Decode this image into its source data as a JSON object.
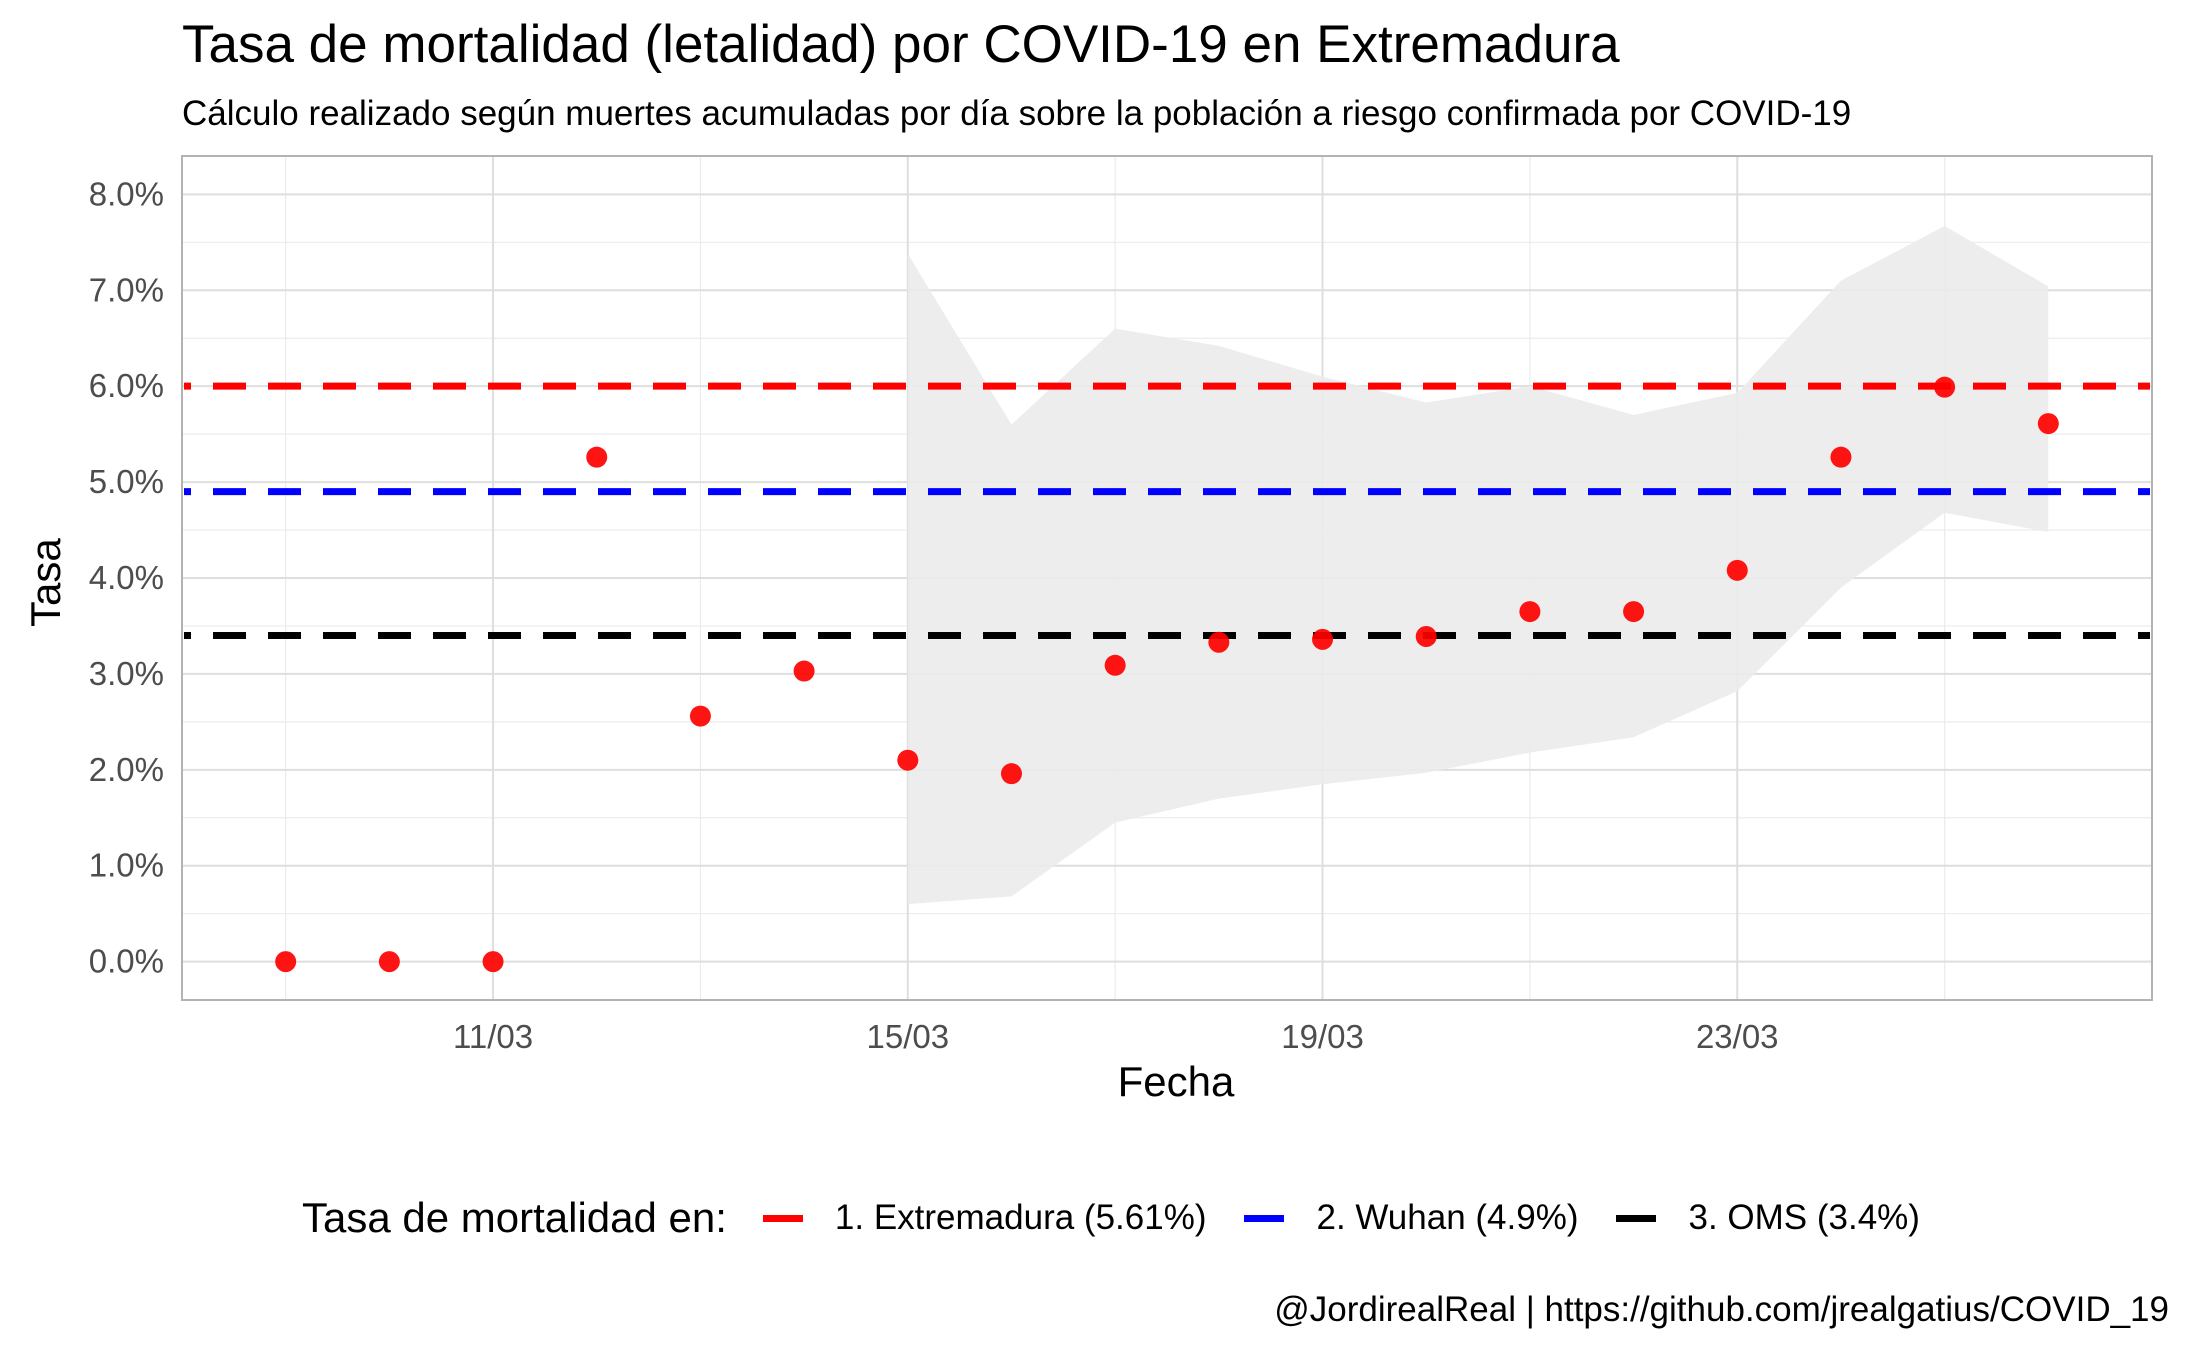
{
  "chart_data": {
    "type": "scatter",
    "title": "Tasa de mortalidad (letalidad) por COVID-19 en Extremadura",
    "subtitle": "Cálculo realizado según muertes acumuladas por día sobre la población a riesgo confirmada por COVID-19",
    "xlabel": "Fecha",
    "ylabel": "Tasa",
    "caption": "@JordirealReal | https://github.com/jrealgatius/COVID_19",
    "x_ticks": [
      {
        "label": "11/03",
        "value": "2020-03-11"
      },
      {
        "label": "15/03",
        "value": "2020-03-15"
      },
      {
        "label": "19/03",
        "value": "2020-03-19"
      },
      {
        "label": "23/03",
        "value": "2020-03-23"
      }
    ],
    "xlim": [
      "2020-03-08",
      "2020-03-27"
    ],
    "y_ticks": [
      "0.0%",
      "1.0%",
      "2.0%",
      "3.0%",
      "4.0%",
      "5.0%",
      "6.0%",
      "7.0%",
      "8.0%"
    ],
    "ylim": [
      -0.004,
      0.084
    ],
    "grid": true,
    "points": {
      "color": "#ff0000",
      "x": [
        "2020-03-09",
        "2020-03-10",
        "2020-03-11",
        "2020-03-12",
        "2020-03-13",
        "2020-03-14",
        "2020-03-15",
        "2020-03-16",
        "2020-03-17",
        "2020-03-18",
        "2020-03-19",
        "2020-03-20",
        "2020-03-21",
        "2020-03-22",
        "2020-03-23",
        "2020-03-24",
        "2020-03-25",
        "2020-03-26"
      ],
      "y": [
        0.0,
        0.0,
        0.0,
        0.0526,
        0.0256,
        0.0303,
        0.021,
        0.0196,
        0.0309,
        0.0333,
        0.0336,
        0.0339,
        0.0365,
        0.0365,
        0.0408,
        0.0526,
        0.0599,
        0.0561
      ]
    },
    "ribbon": {
      "color": "#ebebeb",
      "x": [
        "2020-03-15",
        "2020-03-16",
        "2020-03-17",
        "2020-03-18",
        "2020-03-19",
        "2020-03-20",
        "2020-03-21",
        "2020-03-22",
        "2020-03-23",
        "2020-03-24",
        "2020-03-25",
        "2020-03-26"
      ],
      "lower": [
        0.006,
        0.0068,
        0.0145,
        0.017,
        0.0185,
        0.0197,
        0.0218,
        0.0234,
        0.0282,
        0.039,
        0.0468,
        0.0448
      ],
      "upper": [
        0.0738,
        0.056,
        0.066,
        0.0642,
        0.061,
        0.0583,
        0.06,
        0.057,
        0.0593,
        0.071,
        0.0767,
        0.0704
      ]
    },
    "hlines": [
      {
        "name": "1. Extremadura (5.61%)",
        "value": 0.06,
        "color": "#ff0000"
      },
      {
        "name": "2. Wuhan (4.9%)",
        "value": 0.049,
        "color": "#0000ff"
      },
      {
        "name": "3. OMS (3.4%)",
        "value": 0.034,
        "color": "#000000"
      }
    ],
    "legend": {
      "title": "Tasa de mortalidad en:",
      "position": "bottom"
    }
  }
}
